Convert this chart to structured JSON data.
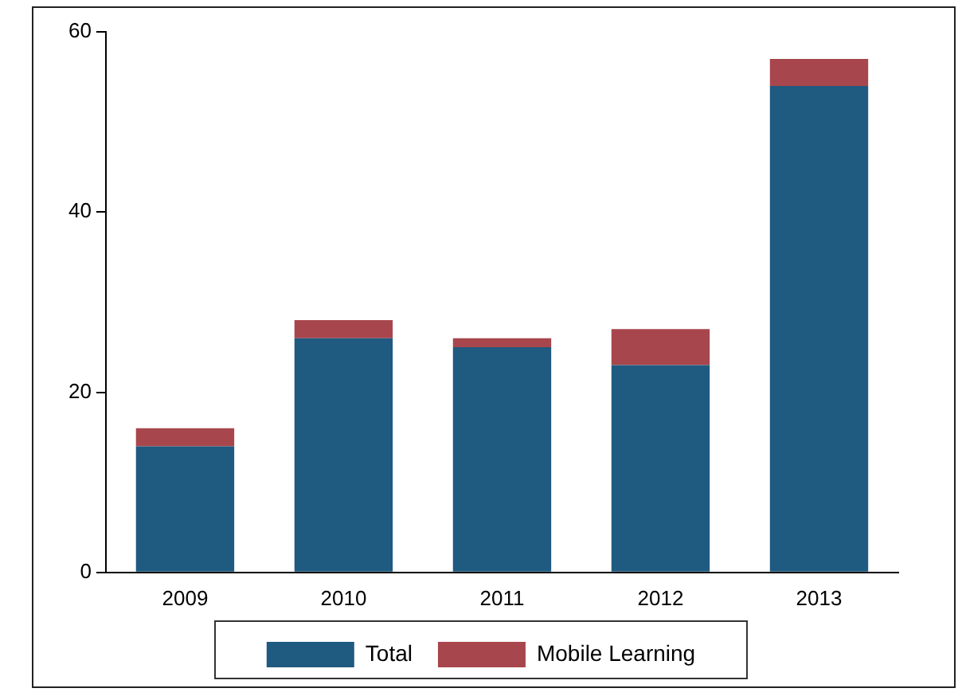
{
  "chart_data": {
    "type": "bar",
    "stacked": true,
    "categories": [
      "2009",
      "2010",
      "2011",
      "2012",
      "2013"
    ],
    "series": [
      {
        "name": "Total",
        "color": "#1f5a80",
        "values": [
          14,
          26,
          25,
          23,
          54
        ]
      },
      {
        "name": "Mobile Learning",
        "color": "#a8464d",
        "values": [
          2,
          2,
          1,
          4,
          3
        ]
      }
    ],
    "ylim": [
      0,
      60
    ],
    "yticks": [
      0,
      20,
      40,
      60
    ],
    "grid": false,
    "legend": "bottom"
  }
}
